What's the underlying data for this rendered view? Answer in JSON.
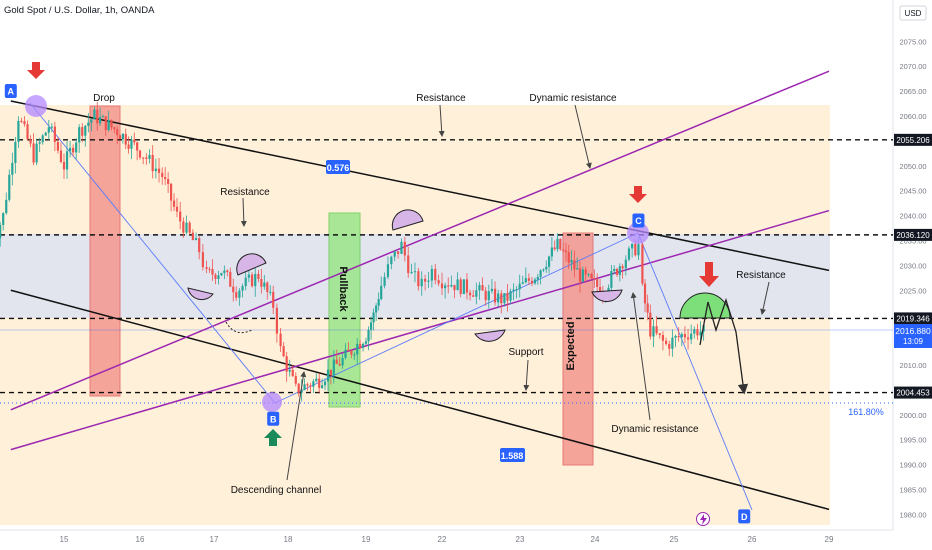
{
  "header": {
    "symbol_title": "Gold Spot / U.S. Dollar, 1h, OANDA",
    "currency": "USD"
  },
  "colors": {
    "up": "#26a69a",
    "down": "#ef5350",
    "purple": "#9c27b0",
    "blue": "#2962ff",
    "zone": "#fde7c2",
    "band": "#d7dde8",
    "green_box": "#8fe07a",
    "red_box": "#f28b82"
  },
  "chart_data": {
    "type": "candlestick",
    "instrument": "Gold Spot / U.S. Dollar",
    "timeframe": "1h",
    "ylim": [
      1977,
      2087
    ],
    "y_ticks": [
      1980.0,
      1985.0,
      1990.0,
      1995.0,
      2000.0,
      2005.0,
      2010.0,
      2015.0,
      2020.0,
      2025.0,
      2030.0,
      2035.0,
      2040.0,
      2045.0,
      2050.0,
      2055.0,
      2060.0,
      2065.0,
      2070.0,
      2075.0
    ],
    "x_ticks": [
      {
        "label": "15",
        "d": 15
      },
      {
        "label": "16",
        "d": 16
      },
      {
        "label": "17",
        "d": 17
      },
      {
        "label": "18",
        "d": 18
      },
      {
        "label": "19",
        "d": 19
      },
      {
        "label": "22",
        "d": 22
      },
      {
        "label": "23",
        "d": 23
      },
      {
        "label": "24",
        "d": 24
      },
      {
        "label": "25",
        "d": 25
      },
      {
        "label": "26",
        "d": 26
      },
      {
        "label": "29",
        "d": 29
      }
    ],
    "price_path": [
      [
        14.0,
        2032
      ],
      [
        14.2,
        2040
      ],
      [
        14.4,
        2060
      ],
      [
        14.6,
        2052
      ],
      [
        14.8,
        2058
      ],
      [
        15.0,
        2050
      ],
      [
        15.2,
        2057
      ],
      [
        15.4,
        2060
      ],
      [
        15.7,
        2057
      ],
      [
        16.0,
        2053
      ],
      [
        16.3,
        2048
      ],
      [
        16.5,
        2040
      ],
      [
        16.8,
        2033
      ],
      [
        16.9,
        2028
      ],
      [
        17.1,
        2029
      ],
      [
        17.3,
        2025
      ],
      [
        17.6,
        2028
      ],
      [
        17.8,
        2022
      ],
      [
        17.9,
        2013
      ],
      [
        18.1,
        2005
      ],
      [
        18.4,
        2007
      ],
      [
        18.7,
        2011
      ],
      [
        19.0,
        2016
      ],
      [
        19.3,
        2020
      ],
      [
        19.6,
        2026
      ],
      [
        20.0,
        2031
      ],
      [
        20.4,
        2034
      ],
      [
        20.8,
        2028
      ],
      [
        21.2,
        2026
      ],
      [
        21.6,
        2029
      ],
      [
        22.0,
        2027
      ],
      [
        22.4,
        2025
      ],
      [
        22.8,
        2023
      ],
      [
        23.2,
        2028
      ],
      [
        23.5,
        2034
      ],
      [
        23.8,
        2028
      ],
      [
        24.1,
        2025
      ],
      [
        24.35,
        2031
      ],
      [
        24.55,
        2034
      ],
      [
        24.6,
        2025
      ],
      [
        24.7,
        2017
      ],
      [
        24.9,
        2014
      ],
      [
        25.1,
        2016
      ],
      [
        25.3,
        2017
      ],
      [
        25.5,
        2016
      ]
    ],
    "horizontal_levels": [
      {
        "label": "2055.206",
        "price": 2055.206,
        "style": "dashed"
      },
      {
        "label": "2036.120",
        "price": 2036.12,
        "style": "dashed"
      },
      {
        "label": "2019.346",
        "price": 2019.346,
        "style": "dashed"
      },
      {
        "label": "2004.453",
        "price": 2004.453,
        "style": "dashed"
      }
    ],
    "current_price": {
      "label": "2016.880",
      "price": 2016.88,
      "countdown": "13:09"
    },
    "fib_label": "161.80%",
    "fib_ratios": [
      "0.576",
      "1.588"
    ],
    "trend_lines": [
      {
        "name": "channel-upper",
        "from": [
          14.3,
          2063
        ],
        "to": [
          29.0,
          2029
        ]
      },
      {
        "name": "channel-lower",
        "from": [
          14.3,
          2025
        ],
        "to": [
          29.0,
          1981
        ]
      },
      {
        "name": "dynamic-resistance-upper",
        "from": [
          14.3,
          2001
        ],
        "to": [
          29.0,
          2069
        ]
      },
      {
        "name": "dynamic-resistance-lower",
        "from": [
          14.3,
          1993
        ],
        "to": [
          29.0,
          2041
        ]
      }
    ],
    "points": [
      {
        "label": "A",
        "x": 14.3,
        "y": 2062
      },
      {
        "label": "B",
        "x": 17.8,
        "y": 2002
      },
      {
        "label": "C",
        "x": 24.55,
        "y": 2036
      },
      {
        "label": "D",
        "x": 25.9,
        "y": 1981
      }
    ],
    "annotations": [
      "Drop",
      "Resistance",
      "Dynamic resistance",
      "Resistance",
      "Pullback",
      "Support",
      "Expected",
      "Dynamic resistance",
      "Resistance",
      "Descending channel"
    ]
  }
}
